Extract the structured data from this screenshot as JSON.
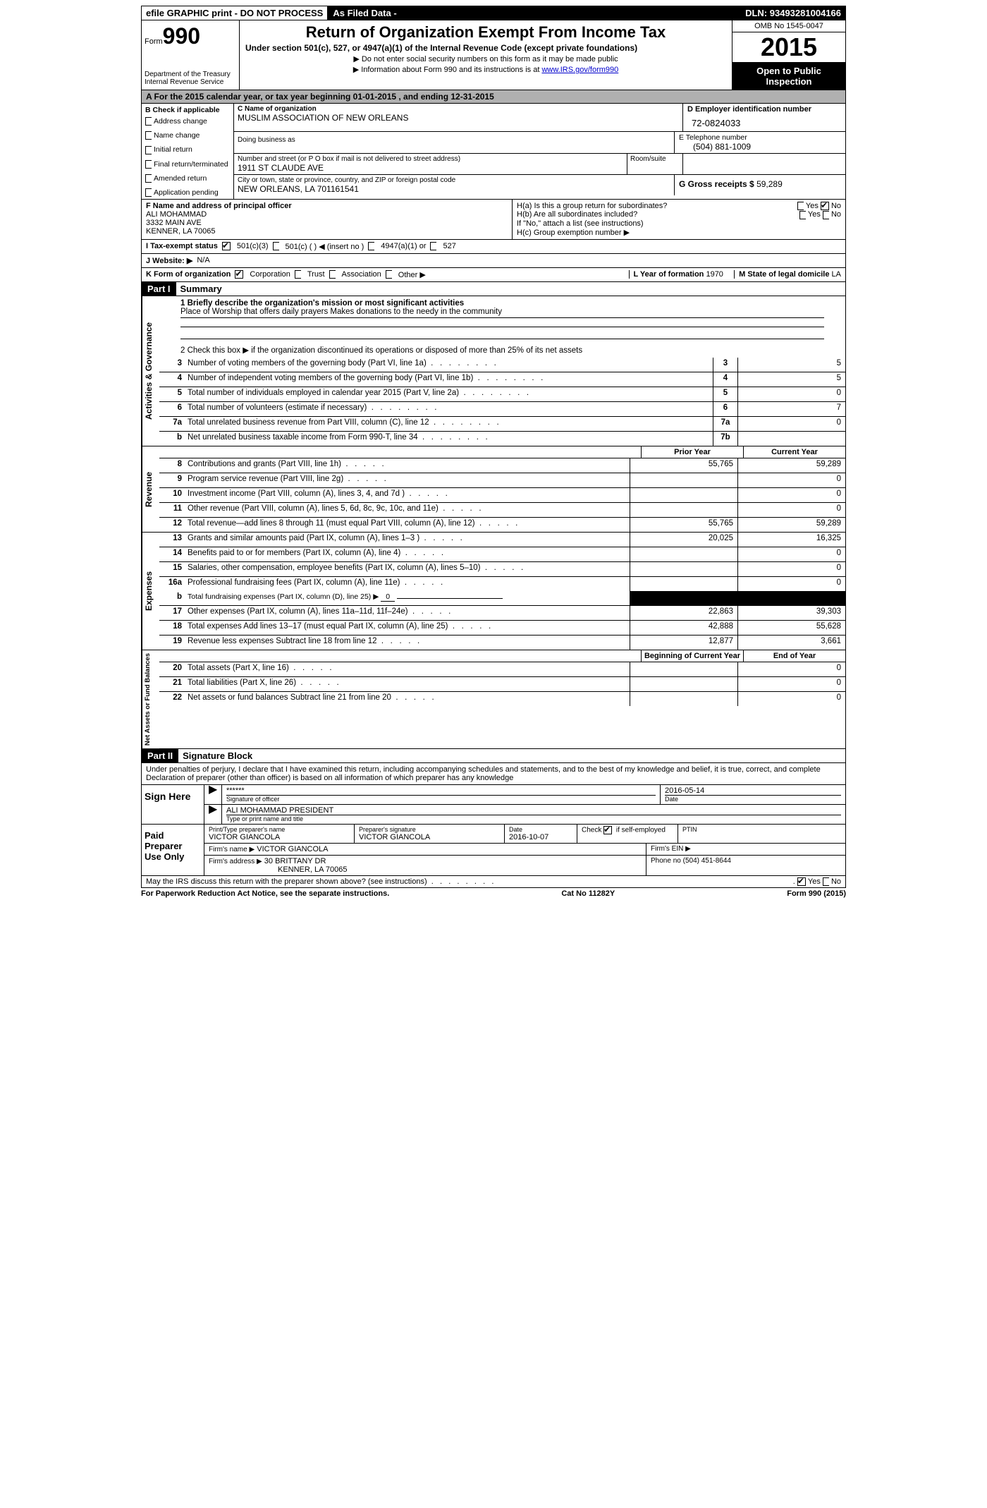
{
  "topbar": {
    "efile": "efile GRAPHIC print - DO NOT PROCESS",
    "asfiled": "As Filed Data -",
    "dln_label": "DLN:",
    "dln": "93493281004166"
  },
  "header": {
    "form_word": "Form",
    "form_num": "990",
    "dept": "Department of the Treasury\nInternal Revenue Service",
    "title": "Return of Organization Exempt From Income Tax",
    "sub": "Under section 501(c), 527, or 4947(a)(1) of the Internal Revenue Code (except private foundations)",
    "note1": "▶ Do not enter social security numbers on this form as it may be made public",
    "note2_a": "▶ Information about Form 990 and its instructions is at ",
    "note2_link": "www.IRS.gov/form990",
    "omb": "OMB No  1545-0047",
    "year": "2015",
    "open": "Open to Public Inspection"
  },
  "rowA": "A   For the 2015 calendar year, or tax year beginning 01-01-2015     , and ending 12-31-2015",
  "B": {
    "label": "B  Check if applicable",
    "items": [
      "Address change",
      "Name change",
      "Initial return",
      "Final return/terminated",
      "Amended return",
      "Application pending"
    ]
  },
  "C": {
    "name_lab": "C Name of organization",
    "name": "MUSLIM ASSOCIATION OF NEW ORLEANS",
    "dba_lab": "Doing business as",
    "street_lab": "Number and street (or P O  box if mail is not delivered to street address)",
    "room_lab": "Room/suite",
    "street": "1911 ST CLAUDE AVE",
    "city_lab": "City or town, state or province, country, and ZIP or foreign postal code",
    "city": "NEW ORLEANS, LA  701161541"
  },
  "D": {
    "lab": "D Employer identification number",
    "val": "72-0824033",
    "E_lab": "E Telephone number",
    "E_val": "(504) 881-1009",
    "G_lab": "G Gross receipts $",
    "G_val": "59,289"
  },
  "F": {
    "lab": "F   Name and address of principal officer",
    "name": "ALI MOHAMMAD",
    "addr1": "3332 MAIN AVE",
    "addr2": "KENNER, LA  70065"
  },
  "H": {
    "a": "H(a)  Is this a group return for subordinates?",
    "b": "H(b)  Are all subordinates included?",
    "b_note": "If \"No,\" attach a list  (see instructions)",
    "c": "H(c)  Group exemption number ▶",
    "yes": "Yes",
    "no": "No"
  },
  "I": {
    "lab": "I   Tax-exempt status",
    "o1": "501(c)(3)",
    "o2": "501(c) (  ) ◀ (insert no )",
    "o3": "4947(a)(1) or",
    "o4": "527"
  },
  "J": {
    "lab": "J   Website: ▶",
    "val": "N/A"
  },
  "K": {
    "lab": "K Form of organization",
    "o1": "Corporation",
    "o2": "Trust",
    "o3": "Association",
    "o4": "Other ▶",
    "L_lab": "L Year of formation",
    "L_val": "1970",
    "M_lab": "M State of legal domicile",
    "M_val": "LA"
  },
  "part1": {
    "bar": "Part I",
    "title": "Summary"
  },
  "summary": {
    "q1_lab": "1 Briefly describe the organization's mission or most significant activities",
    "q1_val": "Place of Worship that offers daily prayers  Makes donations to the needy in the community",
    "q2": "2  Check this box ▶      if the organization discontinued its operations or disposed of more than 25% of its net assets",
    "lines_gov": [
      {
        "n": "3",
        "d": "Number of voting members of the governing body (Part VI, line 1a)",
        "t": "3",
        "v": "5"
      },
      {
        "n": "4",
        "d": "Number of independent voting members of the governing body (Part VI, line 1b)",
        "t": "4",
        "v": "5"
      },
      {
        "n": "5",
        "d": "Total number of individuals employed in calendar year 2015 (Part V, line 2a)",
        "t": "5",
        "v": "0"
      },
      {
        "n": "6",
        "d": "Total number of volunteers (estimate if necessary)",
        "t": "6",
        "v": "7"
      },
      {
        "n": "7a",
        "d": "Total unrelated business revenue from Part VIII, column (C), line 12",
        "t": "7a",
        "v": "0"
      },
      {
        "n": "b",
        "d": "Net unrelated business taxable income from Form 990-T, line 34",
        "t": "7b",
        "v": ""
      }
    ],
    "hdr_prior": "Prior Year",
    "hdr_curr": "Current Year",
    "lines_rev": [
      {
        "n": "8",
        "d": "Contributions and grants (Part VIII, line 1h)",
        "p": "55,765",
        "c": "59,289"
      },
      {
        "n": "9",
        "d": "Program service revenue (Part VIII, line 2g)",
        "p": "",
        "c": "0"
      },
      {
        "n": "10",
        "d": "Investment income (Part VIII, column (A), lines 3, 4, and 7d )",
        "p": "",
        "c": "0"
      },
      {
        "n": "11",
        "d": "Other revenue (Part VIII, column (A), lines 5, 6d, 8c, 9c, 10c, and 11e)",
        "p": "",
        "c": "0"
      },
      {
        "n": "12",
        "d": "Total revenue—add lines 8 through 11 (must equal Part VIII, column (A), line 12)",
        "p": "55,765",
        "c": "59,289"
      }
    ],
    "lines_exp": [
      {
        "n": "13",
        "d": "Grants and similar amounts paid (Part IX, column (A), lines 1–3 )",
        "p": "20,025",
        "c": "16,325"
      },
      {
        "n": "14",
        "d": "Benefits paid to or for members (Part IX, column (A), line 4)",
        "p": "",
        "c": "0"
      },
      {
        "n": "15",
        "d": "Salaries, other compensation, employee benefits (Part IX, column (A), lines 5–10)",
        "p": "",
        "c": "0"
      },
      {
        "n": "16a",
        "d": "Professional fundraising fees (Part IX, column (A), line 11e)",
        "p": "",
        "c": "0"
      }
    ],
    "line_b": {
      "n": "b",
      "d": "Total fundraising expenses (Part IX, column (D), line 25) ▶",
      "u": "0"
    },
    "lines_exp2": [
      {
        "n": "17",
        "d": "Other expenses (Part IX, column (A), lines 11a–11d, 11f–24e)",
        "p": "22,863",
        "c": "39,303"
      },
      {
        "n": "18",
        "d": "Total expenses  Add lines 13–17 (must equal Part IX, column (A), line 25)",
        "p": "42,888",
        "c": "55,628"
      },
      {
        "n": "19",
        "d": "Revenue less expenses  Subtract line 18 from line 12",
        "p": "12,877",
        "c": "3,661"
      }
    ],
    "hdr_beg": "Beginning of Current Year",
    "hdr_end": "End of Year",
    "lines_net": [
      {
        "n": "20",
        "d": "Total assets (Part X, line 16)",
        "p": "",
        "c": "0"
      },
      {
        "n": "21",
        "d": "Total liabilities (Part X, line 26)",
        "p": "",
        "c": "0"
      },
      {
        "n": "22",
        "d": "Net assets or fund balances  Subtract line 21 from line 20",
        "p": "",
        "c": "0"
      }
    ]
  },
  "sidelabels": {
    "gov": "Activities & Governance",
    "rev": "Revenue",
    "exp": "Expenses",
    "net": "Net Assets or Fund Balances"
  },
  "part2": {
    "bar": "Part II",
    "title": "Signature Block"
  },
  "perjury": "Under penalties of perjury, I declare that I have examined this return, including accompanying schedules and statements, and to the best of my knowledge and belief, it is true, correct, and complete  Declaration of preparer (other than officer) is based on all information of which preparer has any knowledge",
  "sign": {
    "label": "Sign Here",
    "stars": "******",
    "sig_of": "Signature of officer",
    "date": "2016-05-14",
    "date_lab": "Date",
    "name": "ALI MOHAMMAD PRESIDENT",
    "name_lab": "Type or print name and title"
  },
  "paid": {
    "label": "Paid Preparer Use Only",
    "pt_name_lab": "Print/Type preparer's name",
    "pt_name": "VICTOR GIANCOLA",
    "pt_sig_lab": "Preparer's signature",
    "pt_sig": "VICTOR GIANCOLA",
    "pt_date_lab": "Date",
    "pt_date": "2016-10-07",
    "self_lab": "Check       if self-employed",
    "ptin_lab": "PTIN",
    "firm_name_lab": "Firm's name    ▶",
    "firm_name": "VICTOR GIANCOLA",
    "firm_ein_lab": "Firm's EIN ▶",
    "firm_addr_lab": "Firm's address ▶",
    "firm_addr1": "30 BRITTANY DR",
    "firm_addr2": "KENNER, LA  70065",
    "phone_lab": "Phone no",
    "phone": "(504) 451-8644"
  },
  "discuss": "May the IRS discuss this return with the preparer shown above? (see instructions)",
  "foot": {
    "left": "For Paperwork Reduction Act Notice, see the separate instructions.",
    "mid": "Cat  No  11282Y",
    "right": "Form 990 (2015)"
  }
}
